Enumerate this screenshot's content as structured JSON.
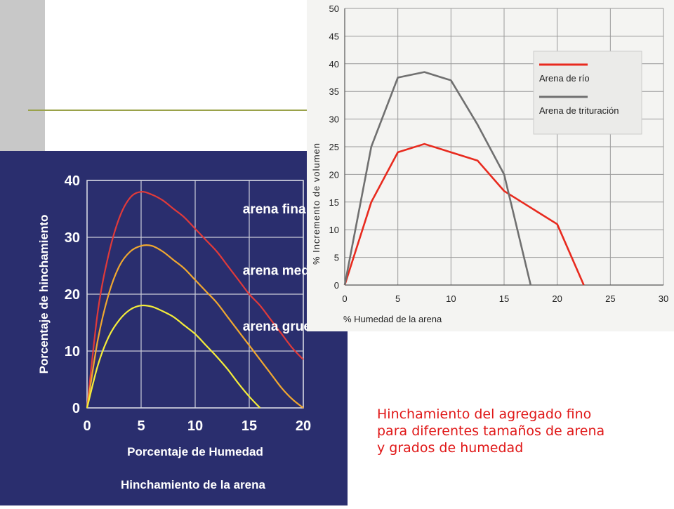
{
  "chart_data": [
    {
      "type": "line",
      "title": "Hinchamiento de la arena",
      "xlabel": "Porcentaje de Humedad",
      "ylabel": "Porcentaje de hinchamiento",
      "xlim": [
        0,
        20
      ],
      "ylim": [
        0,
        40
      ],
      "xticks": [
        "0",
        "5",
        "10",
        "15",
        "20"
      ],
      "yticks": [
        "0",
        "10",
        "20",
        "30",
        "40"
      ],
      "grid": true,
      "legend": "inline-labels",
      "series": [
        {
          "name": "arena fina",
          "color": "#e03a3a",
          "x": [
            0,
            1,
            2,
            3,
            4,
            5,
            6,
            7,
            8,
            9,
            10,
            11,
            12,
            13,
            14,
            15,
            16,
            17,
            18,
            19,
            20
          ],
          "values": [
            0,
            17,
            27,
            33.5,
            37,
            38,
            37.5,
            36.5,
            35,
            33.5,
            31.5,
            29.5,
            27.5,
            25,
            22.5,
            20,
            18,
            15.5,
            13,
            10.5,
            8.5
          ]
        },
        {
          "name": "arena media",
          "color": "#f0a830",
          "x": [
            0,
            1,
            2,
            3,
            4,
            5,
            6,
            7,
            8,
            9,
            10,
            11,
            12,
            13,
            14,
            15,
            16,
            17,
            18,
            19,
            20
          ],
          "values": [
            0,
            12,
            20,
            25,
            27.5,
            28.5,
            28.5,
            27.5,
            26,
            24.5,
            22.5,
            20.5,
            18.5,
            16,
            13.5,
            11,
            8.5,
            6,
            3.5,
            1.5,
            0
          ]
        },
        {
          "name": "arena gruesa",
          "color": "#f4ec3a",
          "x": [
            0,
            1,
            2,
            3,
            4,
            5,
            6,
            7,
            8,
            9,
            10,
            11,
            12,
            13,
            14,
            15,
            16
          ],
          "values": [
            0,
            7.5,
            12.5,
            15.5,
            17.3,
            18,
            17.8,
            17,
            16,
            14.5,
            13,
            11,
            9,
            6.8,
            4.3,
            2,
            0
          ]
        }
      ]
    },
    {
      "type": "line",
      "xlabel": "% Humedad de la arena",
      "ylabel": "% Incremento de volumen",
      "xlim": [
        0,
        30
      ],
      "ylim": [
        0,
        50
      ],
      "xticks": [
        "0",
        "5",
        "10",
        "15",
        "20",
        "25",
        "30"
      ],
      "yticks": [
        "0",
        "5",
        "10",
        "15",
        "20",
        "25",
        "30",
        "35",
        "40",
        "45",
        "50"
      ],
      "grid": true,
      "legend": "top-right",
      "series": [
        {
          "name": "Arena de río",
          "color": "#e82a1e",
          "x": [
            0,
            2.5,
            5,
            7.5,
            10,
            12.5,
            15,
            17.5,
            20,
            22.5
          ],
          "values": [
            0,
            15,
            24,
            25.5,
            24,
            22.5,
            17,
            14,
            11,
            0
          ]
        },
        {
          "name": "Arena de trituración",
          "color": "#707070",
          "x": [
            0,
            2.5,
            5,
            7.5,
            10,
            12.5,
            15,
            17.5
          ],
          "values": [
            0,
            25,
            37.5,
            38.5,
            37,
            29,
            20,
            0
          ]
        }
      ]
    }
  ],
  "caption": {
    "line1": "Hinchamiento del agregado fino",
    "line2": "para diferentes tamaños de arena",
    "line3": "y grados de humedad"
  }
}
